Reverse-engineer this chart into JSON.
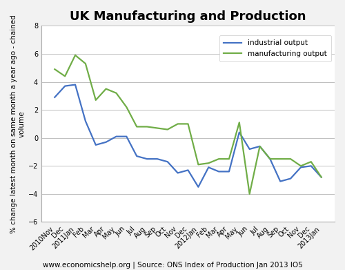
{
  "title": "UK Manufacturing and Production",
  "ylabel": "% change latest month on same month a year ago - chained\nvolume",
  "footnote": "www.economicshelp.org | Source: ONS Index of Production Jan 2013 IO5",
  "ylim": [
    -6.0,
    8.0
  ],
  "yticks": [
    -6.0,
    -4.0,
    -2.0,
    0.0,
    2.0,
    4.0,
    6.0,
    8.0
  ],
  "labels": [
    "2010Nov",
    "Dec",
    "2011Jan",
    "Feb",
    "Mar",
    "Apr",
    "May",
    "Jun",
    "Jul",
    "Aug",
    "Sep",
    "Oct",
    "Nov",
    "Dec",
    "2012Jan",
    "Feb",
    "Mar",
    "Apr",
    "May",
    "Jun",
    "Jul",
    "Aug",
    "Sep",
    "Oct",
    "Nov",
    "Dec",
    "2013Jan"
  ],
  "industrial_output": [
    2.9,
    3.7,
    3.8,
    1.2,
    -0.5,
    -0.3,
    0.1,
    0.1,
    -1.3,
    -1.5,
    -1.5,
    -1.7,
    -2.5,
    -2.3,
    -3.5,
    -2.1,
    -2.4,
    -2.4,
    0.4,
    -0.8,
    -0.6,
    -1.5,
    -3.1,
    -2.9,
    -2.1,
    -2.0,
    -2.8
  ],
  "manufacturing_output": [
    4.9,
    4.4,
    5.9,
    5.3,
    2.7,
    3.5,
    3.2,
    2.2,
    0.8,
    0.8,
    0.7,
    0.6,
    1.0,
    1.0,
    -1.9,
    -1.8,
    -1.5,
    -1.5,
    1.1,
    -4.0,
    -0.6,
    -1.5,
    -1.5,
    -1.5,
    -2.0,
    -1.7,
    -2.8
  ],
  "industrial_color": "#4472C4",
  "manufacturing_color": "#70AD47",
  "bg_color": "#F2F2F2",
  "plot_bg_color": "#FFFFFF",
  "grid_color": "#BEBEBE",
  "line_width": 1.6,
  "legend_labels": [
    "industrial output",
    "manufacturing output"
  ],
  "title_fontsize": 13,
  "tick_fontsize": 7,
  "ylabel_fontsize": 7.5,
  "footnote_fontsize": 7.5
}
